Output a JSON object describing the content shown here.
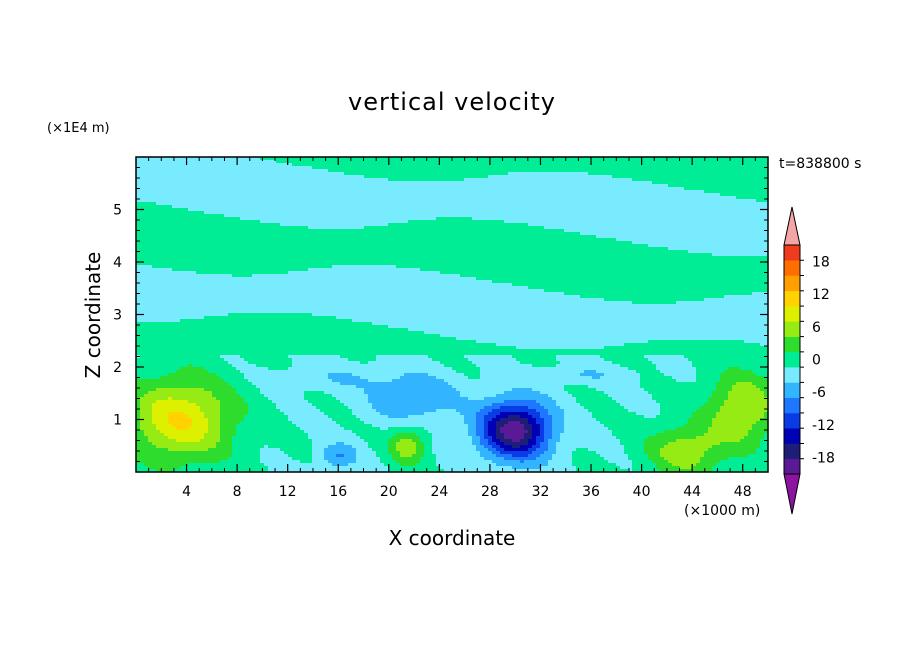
{
  "chart_data": {
    "type": "heatmap",
    "title": "vertical velocity",
    "xlabel": "X coordinate",
    "ylabel": "Z coordinate",
    "x_unit_label": "(×1000 m)",
    "z_unit_label": "(×1E4 m)",
    "time_label": "t=838800 s",
    "xlim": [
      0,
      50
    ],
    "ylim": [
      0,
      6
    ],
    "x_ticks": [
      4,
      8,
      12,
      16,
      20,
      24,
      28,
      32,
      36,
      40,
      44,
      48
    ],
    "y_ticks": [
      1,
      2,
      3,
      4,
      5
    ],
    "colorbar": {
      "labels": [
        "18",
        "12",
        "6",
        "0",
        "-6",
        "-12",
        "-18"
      ],
      "label_values": [
        18,
        12,
        6,
        0,
        -6,
        -12,
        -18
      ],
      "levels": [
        -21,
        -18,
        -15,
        -12,
        -9,
        -6,
        -3,
        0,
        3,
        6,
        9,
        12,
        15,
        18,
        21
      ],
      "colors": [
        "#5a1a96",
        "#1e1e78",
        "#0000b4",
        "#0a3ce6",
        "#1e78ff",
        "#32b4ff",
        "#78ebff",
        "#00ed96",
        "#2ddc2d",
        "#96eb14",
        "#dcf000",
        "#ffd200",
        "#ffa000",
        "#ff6e00",
        "#f03c1e"
      ],
      "under_color": "#8c14a0",
      "over_color": "#f5a5a5"
    },
    "features": [
      {
        "x": 30,
        "z": 0.8,
        "w": -20,
        "sx": 2.8,
        "sz": 0.55
      },
      {
        "x": 3.5,
        "z": 1.0,
        "w": 12,
        "sx": 4.2,
        "sz": 0.8
      },
      {
        "x": 48,
        "z": 1.2,
        "w": 9,
        "sx": 2.8,
        "sz": 0.7
      },
      {
        "x": 43.5,
        "z": 0.4,
        "w": 8,
        "sx": 3.0,
        "sz": 0.5
      },
      {
        "x": 21.5,
        "z": 0.5,
        "w": 8,
        "sx": 1.4,
        "sz": 0.35
      },
      {
        "x": 16,
        "z": 0.3,
        "w": -6,
        "sx": 1.5,
        "sz": 0.25
      },
      {
        "x": 22,
        "z": 1.4,
        "w": -6,
        "sx": 3.5,
        "sz": 0.45
      },
      {
        "x": 35,
        "z": 1.85,
        "w": -3,
        "sx": 4.0,
        "sz": 0.15
      },
      {
        "x": 16,
        "z": 1.8,
        "w": -2.5,
        "sx": 5.0,
        "sz": 0.25
      }
    ]
  }
}
